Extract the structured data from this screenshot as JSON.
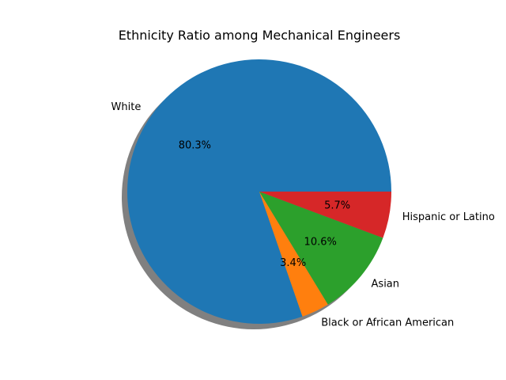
{
  "chart_data": {
    "type": "pie",
    "title": "Ethnicity Ratio among Mechanical Engineers",
    "shadow": true,
    "start_angle_deg": 0,
    "direction": "counterclockwise",
    "autopct_format": "%.1f%%",
    "slices": [
      {
        "label": "White",
        "value": 80.3,
        "pct_label": "80.3%",
        "color": "#1f77b4"
      },
      {
        "label": "Black or African American",
        "value": 3.4,
        "pct_label": "3.4%",
        "color": "#ff7f0e"
      },
      {
        "label": "Asian",
        "value": 10.6,
        "pct_label": "10.6%",
        "color": "#2ca02c"
      },
      {
        "label": "Hispanic or Latino",
        "value": 5.7,
        "pct_label": "5.7%",
        "color": "#d62728"
      }
    ]
  }
}
